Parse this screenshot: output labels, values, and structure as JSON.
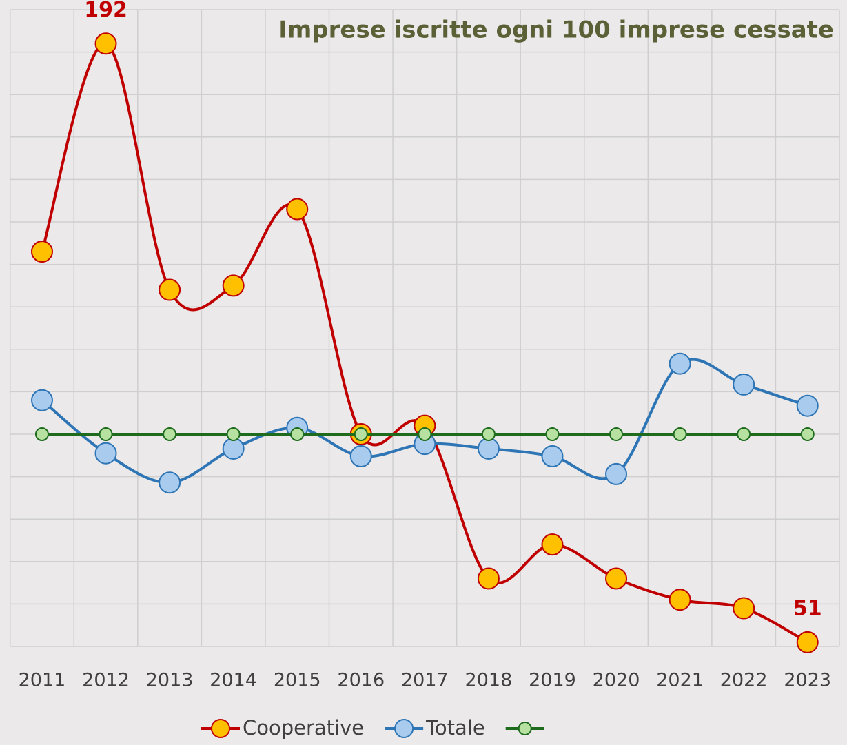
{
  "chart_data": {
    "type": "line",
    "title": "Imprese iscritte ogni 100 imprese cessate",
    "categories": [
      "2011",
      "2012",
      "2013",
      "2014",
      "2015",
      "2016",
      "2017",
      "2018",
      "2019",
      "2020",
      "2021",
      "2022",
      "2023"
    ],
    "series": [
      {
        "name": "Cooperative",
        "color": "#c00000",
        "marker_color": "#ffc000",
        "smooth": true,
        "values": [
          143,
          192,
          134,
          135,
          153,
          100,
          102,
          66,
          74,
          66,
          61,
          59,
          51
        ],
        "data_labels": [
          1,
          12
        ]
      },
      {
        "name": "Totale",
        "color": "#2e75b6",
        "marker_color": "#a9cbee",
        "smooth": true,
        "values": [
          108,
          95.5,
          88.6,
          96.6,
          101.5,
          94.8,
          97.7,
          96.6,
          94.8,
          90.6,
          116.6,
          111.7,
          106.7
        ]
      },
      {
        "color": "#1e6b1e",
        "marker_color": "#b7e1a1",
        "smooth": false,
        "values": [
          100,
          100,
          100,
          100,
          100,
          100,
          100,
          100,
          100,
          100,
          100,
          100,
          100
        ]
      }
    ],
    "ylim": [
      50,
      200
    ],
    "yticks": [
      50,
      60,
      70,
      80,
      90,
      100,
      110,
      120,
      130,
      140,
      150,
      160,
      170,
      180,
      190,
      200
    ],
    "grid": true,
    "legend": "bottom"
  }
}
